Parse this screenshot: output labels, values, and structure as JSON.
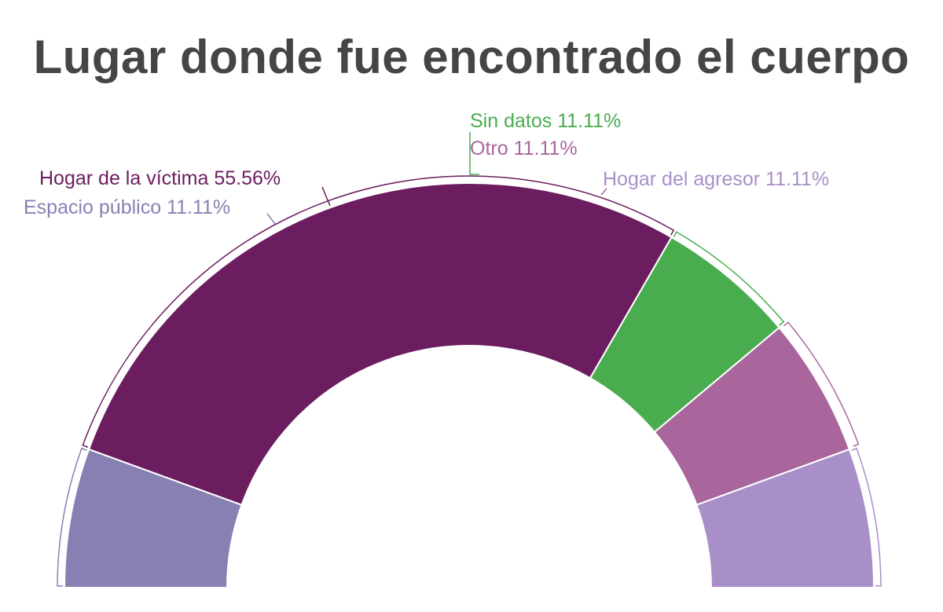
{
  "chart_data": {
    "type": "pie",
    "variant": "semi-donut",
    "title": "Lugar donde fue encontrado el cuerpo",
    "slices": [
      {
        "label": "Espacio público",
        "value": 11.11,
        "display": "11.11%",
        "color": "#8780b3"
      },
      {
        "label": "Hogar de la víctima",
        "value": 55.56,
        "display": "55.56%",
        "color": "#6b1d5f"
      },
      {
        "label": "Sin datos",
        "value": 11.11,
        "display": "11.11%",
        "color": "#49ad4f"
      },
      {
        "label": "Otro",
        "value": 11.11,
        "display": "11.11%",
        "color": "#a9669c"
      },
      {
        "label": "Hogar del agresor",
        "value": 11.11,
        "display": "11.11%",
        "color": "#a98fc8"
      }
    ]
  }
}
